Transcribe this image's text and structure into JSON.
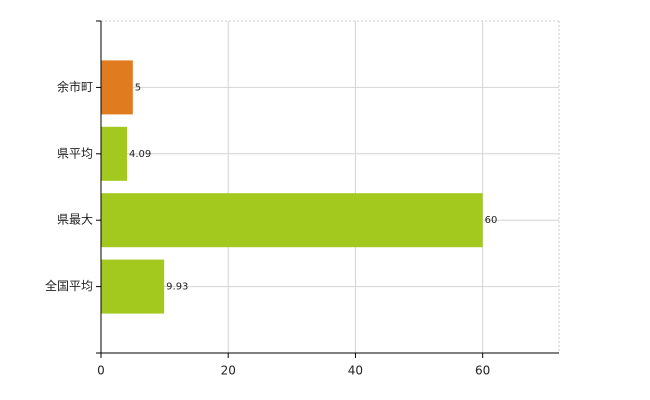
{
  "chart_data": {
    "type": "bar",
    "orientation": "horizontal",
    "categories": [
      "余市町",
      "県平均",
      "県最大",
      "全国平均"
    ],
    "values": [
      5,
      4.09,
      60,
      9.93
    ],
    "colors": [
      "#e07b1f",
      "#a3c81e",
      "#a3c81e",
      "#a3c81e"
    ],
    "xlim": [
      0,
      72
    ],
    "xticks": [
      0,
      20,
      40,
      60
    ],
    "grid": true
  }
}
